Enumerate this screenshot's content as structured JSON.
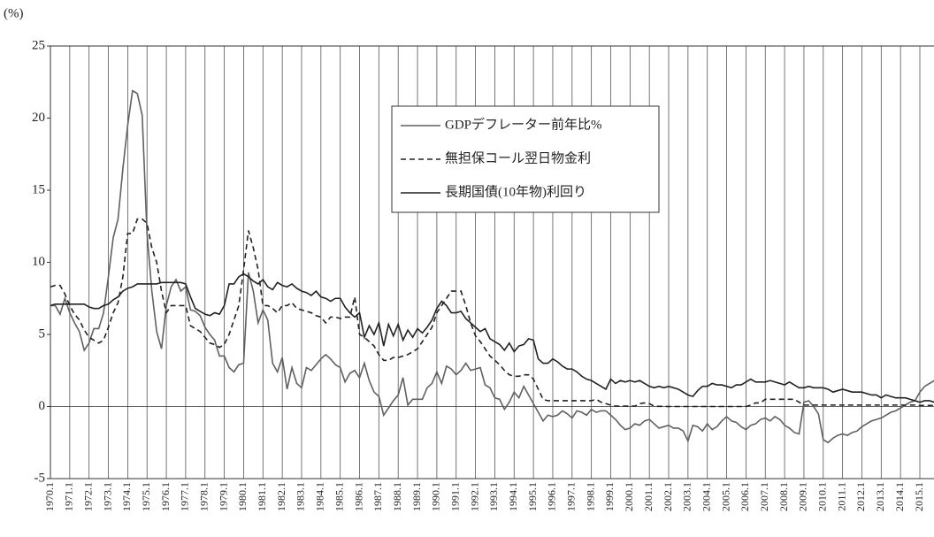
{
  "chart_data": {
    "type": "line",
    "ylabel": "(%)",
    "ylim": [
      -5,
      25
    ],
    "yticks": [
      -5,
      0,
      5,
      10,
      15,
      20,
      25
    ],
    "legend": "upper right",
    "categories": [
      "1970.1",
      null,
      null,
      null,
      "1971.1",
      null,
      null,
      null,
      "1972.1",
      null,
      null,
      null,
      "1973.1",
      null,
      null,
      null,
      "1974.1",
      null,
      null,
      null,
      "1975.1",
      null,
      null,
      null,
      "1976.1",
      null,
      null,
      null,
      "1977.1",
      null,
      null,
      null,
      "1978.1",
      null,
      null,
      null,
      "1979.1",
      null,
      null,
      null,
      "1980.1",
      null,
      null,
      null,
      "1981.1",
      null,
      null,
      null,
      "1982.1",
      null,
      null,
      null,
      "1983.1",
      null,
      null,
      null,
      "1984.1",
      null,
      null,
      null,
      "1985.1",
      null,
      null,
      null,
      "1986.1",
      null,
      null,
      null,
      "1987.1",
      null,
      null,
      null,
      "1988.1",
      null,
      null,
      null,
      "1989.1",
      null,
      null,
      null,
      "1990.1",
      null,
      null,
      null,
      "1991.1",
      null,
      null,
      null,
      "1992.1",
      null,
      null,
      null,
      "1993.1",
      null,
      null,
      null,
      "1994.1",
      null,
      null,
      null,
      "1995.1",
      null,
      null,
      null,
      "1996.1",
      null,
      null,
      null,
      "1997.1",
      null,
      null,
      null,
      "1998.1",
      null,
      null,
      null,
      "1999.1",
      null,
      null,
      null,
      "2000.1",
      null,
      null,
      null,
      "2001.1",
      null,
      null,
      null,
      "2002.1",
      null,
      null,
      null,
      "2003.1",
      null,
      null,
      null,
      "2004.1",
      null,
      null,
      null,
      "2005.1",
      null,
      null,
      null,
      "2006.1",
      null,
      null,
      null,
      "2007.1",
      null,
      null,
      null,
      "2008.1",
      null,
      null,
      null,
      "2009.1",
      null,
      null,
      null,
      "2010.1",
      null,
      null,
      null,
      "2011.1",
      null,
      null,
      null,
      "2012.1",
      null,
      null,
      null,
      "2013.1",
      null,
      null,
      null,
      "2014.1",
      null,
      null,
      null,
      "2015.1",
      null,
      null,
      null
    ],
    "series": [
      {
        "name": "GDPデフレーター前年比%",
        "color": "#606060",
        "line_style": "solid",
        "values": [
          7.0,
          7.0,
          6.4,
          7.5,
          6.5,
          5.8,
          5.2,
          3.9,
          4.4,
          5.4,
          5.4,
          6.5,
          9.0,
          11.7,
          13.0,
          16.5,
          19.5,
          21.9,
          21.7,
          20.2,
          12.0,
          8.0,
          5.2,
          4.0,
          7.0,
          8.3,
          8.8,
          8.0,
          8.3,
          6.7,
          6.6,
          6.3,
          5.5,
          5.0,
          4.6,
          3.5,
          3.5,
          2.7,
          2.4,
          2.9,
          3.0,
          9.3,
          8.0,
          5.8,
          6.7,
          6.0,
          3.0,
          2.4,
          3.4,
          1.2,
          2.7,
          1.6,
          1.3,
          2.7,
          2.5,
          2.9,
          3.3,
          3.6,
          3.3,
          2.9,
          2.7,
          1.7,
          2.3,
          2.5,
          2.0,
          3.0,
          1.8,
          1.0,
          0.7,
          -0.6,
          -0.1,
          0.4,
          0.8,
          2.0,
          0.1,
          0.5,
          0.5,
          0.5,
          1.3,
          1.6,
          2.4,
          1.6,
          2.8,
          2.6,
          2.2,
          2.5,
          3.0,
          2.5,
          2.6,
          2.7,
          1.5,
          1.3,
          0.6,
          0.5,
          -0.2,
          0.3,
          1.0,
          0.6,
          1.4,
          0.8,
          0.2,
          -0.4,
          -1.0,
          -0.6,
          -0.7,
          -0.6,
          -0.3,
          -0.5,
          -0.8,
          -0.3,
          -0.4,
          -0.6,
          -0.2,
          -0.4,
          -0.3,
          -0.3,
          -0.6,
          -0.9,
          -1.3,
          -1.6,
          -1.5,
          -1.2,
          -1.3,
          -1.0,
          -0.9,
          -1.2,
          -1.5,
          -1.4,
          -1.3,
          -1.5,
          -1.5,
          -1.7,
          -2.4,
          -1.3,
          -1.4,
          -1.7,
          -1.2,
          -1.6,
          -1.4,
          -1.0,
          -0.7,
          -1.0,
          -1.1,
          -1.4,
          -1.6,
          -1.3,
          -1.2,
          -0.9,
          -0.8,
          -1.0,
          -0.7,
          -0.9,
          -1.3,
          -1.5,
          -1.8,
          -1.9,
          0.3,
          0.4,
          0.0,
          -0.5,
          -2.3,
          -2.5,
          -2.2,
          -2.0,
          -1.9,
          -2.0,
          -1.8,
          -1.7,
          -1.4,
          -1.2,
          -1.0,
          -0.9,
          -0.8,
          -0.6,
          -0.4,
          -0.3,
          -0.1,
          0.1,
          0.3,
          0.4,
          1.0,
          1.4,
          1.6,
          1.8
        ]
      },
      {
        "name": "無担保コール翌日物金利",
        "color": "#222222",
        "line_style": "dashed",
        "values": [
          8.3,
          8.4,
          8.4,
          7.8,
          7.0,
          6.4,
          6.0,
          5.3,
          4.8,
          4.6,
          4.4,
          4.6,
          5.5,
          6.5,
          7.2,
          9.0,
          12.0,
          12.0,
          13.0,
          13.0,
          12.7,
          11.0,
          10.0,
          8.0,
          6.5,
          7.0,
          7.0,
          7.0,
          7.0,
          5.6,
          5.4,
          5.2,
          4.8,
          4.4,
          4.3,
          4.1,
          4.3,
          5.0,
          6.0,
          7.0,
          9.5,
          12.2,
          11.0,
          9.5,
          7.0,
          7.0,
          6.8,
          6.5,
          7.0,
          7.0,
          7.2,
          6.8,
          6.7,
          6.6,
          6.5,
          6.3,
          6.2,
          5.8,
          6.2,
          6.2,
          6.1,
          6.2,
          6.2,
          7.6,
          5.0,
          4.8,
          4.5,
          4.2,
          3.6,
          3.2,
          3.2,
          3.4,
          3.4,
          3.5,
          3.6,
          3.8,
          4.0,
          4.5,
          5.0,
          5.5,
          6.5,
          7.0,
          7.5,
          8.0,
          8.0,
          8.0,
          7.0,
          5.8,
          4.9,
          4.5,
          4.0,
          3.5,
          3.2,
          2.9,
          2.5,
          2.2,
          2.1,
          2.1,
          2.2,
          2.2,
          1.9,
          1.2,
          0.5,
          0.4,
          0.4,
          0.4,
          0.4,
          0.4,
          0.4,
          0.4,
          0.4,
          0.4,
          0.4,
          0.5,
          0.3,
          0.2,
          0.1,
          0.03,
          0.03,
          0.03,
          0.03,
          0.03,
          0.2,
          0.25,
          0.2,
          0.02,
          0.01,
          0.01,
          0.0,
          0.0,
          0.0,
          0.0,
          0.0,
          0.0,
          0.0,
          0.0,
          0.0,
          0.0,
          0.0,
          0.0,
          0.0,
          0.0,
          0.0,
          0.0,
          0.0,
          0.1,
          0.25,
          0.25,
          0.5,
          0.5,
          0.5,
          0.5,
          0.5,
          0.5,
          0.5,
          0.3,
          0.1,
          0.1,
          0.1,
          0.1,
          0.1,
          0.1,
          0.1,
          0.1,
          0.1,
          0.1,
          0.1,
          0.1,
          0.1,
          0.1,
          0.1,
          0.1,
          0.1,
          0.1,
          0.1,
          0.1,
          0.1,
          0.1,
          0.1,
          0.1,
          0.07,
          0.07,
          0.07,
          0.07
        ]
      },
      {
        "name": "長期国債(10年物)利回り",
        "color": "#222222",
        "line_style": "solid",
        "values": [
          7.0,
          7.1,
          7.1,
          7.1,
          7.1,
          7.1,
          7.1,
          7.1,
          6.9,
          6.8,
          6.8,
          7.0,
          7.1,
          7.4,
          7.6,
          8.0,
          8.2,
          8.3,
          8.5,
          8.5,
          8.5,
          8.5,
          8.5,
          8.6,
          8.6,
          8.6,
          8.6,
          8.6,
          8.5,
          7.6,
          6.8,
          6.6,
          6.4,
          6.3,
          6.5,
          6.4,
          7.0,
          8.5,
          8.5,
          9.0,
          9.2,
          9.0,
          8.7,
          8.5,
          8.8,
          8.3,
          8.1,
          8.6,
          8.4,
          8.3,
          8.5,
          8.2,
          8.0,
          7.9,
          7.7,
          8.0,
          7.6,
          7.5,
          7.3,
          7.5,
          7.5,
          6.9,
          6.5,
          6.2,
          6.5,
          4.8,
          5.6,
          5.0,
          5.8,
          4.2,
          5.7,
          4.9,
          5.7,
          4.6,
          5.3,
          4.8,
          5.4,
          5.1,
          5.5,
          6.0,
          6.8,
          7.3,
          7.0,
          6.5,
          6.5,
          6.6,
          6.1,
          5.8,
          5.5,
          5.2,
          5.4,
          4.7,
          4.5,
          4.3,
          3.9,
          4.4,
          3.8,
          4.2,
          4.3,
          4.7,
          4.6,
          3.3,
          3.0,
          3.0,
          3.3,
          3.1,
          2.8,
          2.6,
          2.6,
          2.4,
          2.1,
          1.9,
          1.8,
          1.6,
          1.4,
          1.2,
          1.9,
          1.6,
          1.8,
          1.7,
          1.8,
          1.7,
          1.8,
          1.6,
          1.4,
          1.3,
          1.4,
          1.3,
          1.4,
          1.3,
          1.2,
          1.0,
          0.8,
          0.7,
          1.1,
          1.4,
          1.4,
          1.6,
          1.5,
          1.5,
          1.4,
          1.3,
          1.5,
          1.5,
          1.7,
          1.9,
          1.7,
          1.7,
          1.7,
          1.8,
          1.7,
          1.6,
          1.5,
          1.7,
          1.5,
          1.3,
          1.3,
          1.4,
          1.3,
          1.3,
          1.3,
          1.2,
          1.0,
          1.1,
          1.2,
          1.1,
          1.0,
          1.0,
          1.0,
          0.9,
          0.8,
          0.8,
          0.6,
          0.8,
          0.7,
          0.6,
          0.6,
          0.6,
          0.5,
          0.4,
          0.3,
          0.4,
          0.4,
          0.3
        ]
      }
    ]
  }
}
